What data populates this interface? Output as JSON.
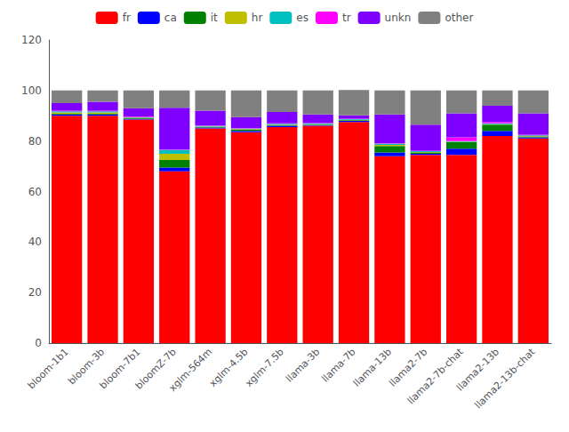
{
  "chart_data": {
    "type": "bar",
    "stacked": true,
    "grid": false,
    "legend": "top",
    "categories": [
      "bloom-1b1",
      "bloom-3b",
      "bloom-7b1",
      "bloomZ-7b",
      "xglm-564m",
      "xglm-4.5b",
      "xglm-7.5b",
      "llama-3b",
      "llama-7b",
      "llama-13b",
      "llama2-7b",
      "llama2-7b-chat",
      "llama2-13b",
      "llama2-13b-chat"
    ],
    "series": [
      {
        "name": "fr",
        "color": "#ff0000",
        "values": [
          90.0,
          90.0,
          88.5,
          68.0,
          85.0,
          83.5,
          85.5,
          86.0,
          87.5,
          74.0,
          74.5,
          74.5,
          82.0,
          81.0
        ]
      },
      {
        "name": "ca",
        "color": "#0000ff",
        "values": [
          0.5,
          0.5,
          0.3,
          1.5,
          0.3,
          0.5,
          0.5,
          0.3,
          0.5,
          1.5,
          0.5,
          2.5,
          2.0,
          0.5
        ]
      },
      {
        "name": "it",
        "color": "#008000",
        "values": [
          0.3,
          0.3,
          0.2,
          3.0,
          0.2,
          0.5,
          0.3,
          0.2,
          0.2,
          2.5,
          0.5,
          2.5,
          2.5,
          0.3
        ]
      },
      {
        "name": "hr",
        "color": "#bfbf00",
        "values": [
          0.5,
          0.5,
          0.2,
          2.5,
          0.2,
          0.2,
          0.2,
          0.2,
          0.2,
          0.5,
          0.2,
          0.2,
          0.2,
          0.2
        ]
      },
      {
        "name": "es",
        "color": "#00bfbf",
        "values": [
          0.5,
          0.5,
          0.3,
          1.5,
          0.3,
          0.3,
          0.3,
          0.3,
          0.3,
          0.5,
          0.3,
          0.3,
          0.3,
          0.3
        ]
      },
      {
        "name": "tr",
        "color": "#ff00ff",
        "values": [
          0.2,
          0.2,
          0.2,
          0.2,
          0.2,
          0.2,
          0.2,
          0.2,
          0.2,
          0.2,
          0.2,
          1.5,
          0.5,
          0.2
        ]
      },
      {
        "name": "unkn",
        "color": "#7f00ff",
        "values": [
          3.0,
          3.5,
          3.3,
          16.5,
          5.8,
          4.3,
          4.5,
          3.3,
          1.3,
          11.3,
          10.3,
          9.5,
          6.5,
          8.5
        ]
      },
      {
        "name": "other",
        "color": "#808080",
        "values": [
          5.0,
          4.5,
          7.0,
          6.8,
          8.0,
          10.5,
          8.5,
          9.5,
          10.0,
          9.5,
          13.5,
          9.0,
          6.0,
          9.0
        ]
      }
    ],
    "ylim": [
      0,
      120
    ],
    "yticks": [
      0,
      20,
      40,
      60,
      80,
      100,
      120
    ]
  }
}
